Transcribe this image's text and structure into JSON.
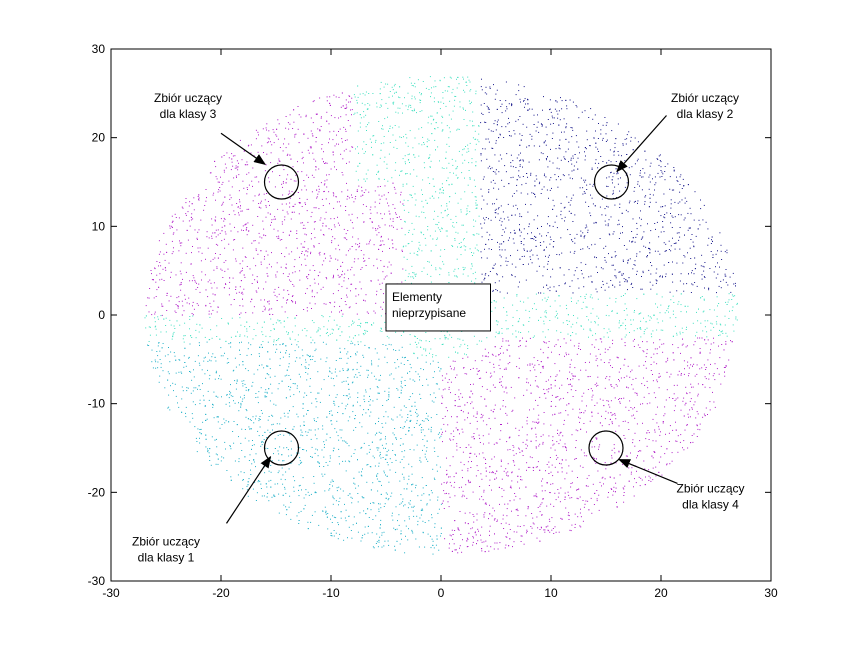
{
  "chart_data": {
    "type": "scatter",
    "xlim": [
      -30,
      30
    ],
    "ylim": [
      -30,
      30
    ],
    "xticks": [
      -30,
      -20,
      -10,
      0,
      10,
      20,
      30
    ],
    "yticks": [
      -30,
      -20,
      -10,
      0,
      10,
      20,
      30
    ],
    "grid": false,
    "region_radius": 27,
    "series": [
      {
        "color": "#1a1a8c",
        "quadrant": "top-right",
        "center": [
          15,
          15
        ]
      },
      {
        "color": "#b01ec8",
        "quadrant": "top-left",
        "center": [
          -15,
          15
        ]
      },
      {
        "color": "#b01ec8",
        "quadrant": "bottom-right",
        "center": [
          15,
          -15
        ]
      },
      {
        "color": "#20b0c8",
        "quadrant": "bottom-left",
        "center": [
          -15,
          -15
        ]
      },
      {
        "color": "#40e0c0",
        "quadrant": "unassigned",
        "center": [
          0,
          0
        ]
      }
    ],
    "annotations": [
      {
        "id": "class3",
        "line1": "Zbiór uczący",
        "line2": "dla klasy 3",
        "text_at": [
          -23,
          24
        ],
        "circle": [
          -14.5,
          15
        ],
        "arrow_from": [
          -20,
          20.5
        ],
        "arrow_to": [
          -16,
          17
        ]
      },
      {
        "id": "class2",
        "line1": "Zbiór uczący",
        "line2": "dla klasy 2",
        "text_at": [
          24,
          24
        ],
        "circle": [
          15.5,
          15
        ],
        "arrow_from": [
          20.5,
          22.5
        ],
        "arrow_to": [
          16,
          16.2
        ]
      },
      {
        "id": "class1",
        "line1": "Zbiór uczący",
        "line2": "dla klasy 1",
        "text_at": [
          -25,
          -26
        ],
        "circle": [
          -14.5,
          -15
        ],
        "arrow_from": [
          -19.5,
          -23.5
        ],
        "arrow_to": [
          -15.5,
          -16
        ]
      },
      {
        "id": "class4",
        "line1": "Zbiór uczący",
        "line2": "dla klasy 4",
        "text_at": [
          24.5,
          -20
        ],
        "circle": [
          15,
          -15
        ],
        "arrow_from": [
          21.5,
          -19
        ],
        "arrow_to": [
          16.2,
          -16.3
        ]
      }
    ],
    "label_box": {
      "line1": "Elementy",
      "line2": "nieprzypisane",
      "x_range": [
        -5,
        4.5
      ],
      "y_range": [
        -1.8,
        3.5
      ]
    }
  }
}
